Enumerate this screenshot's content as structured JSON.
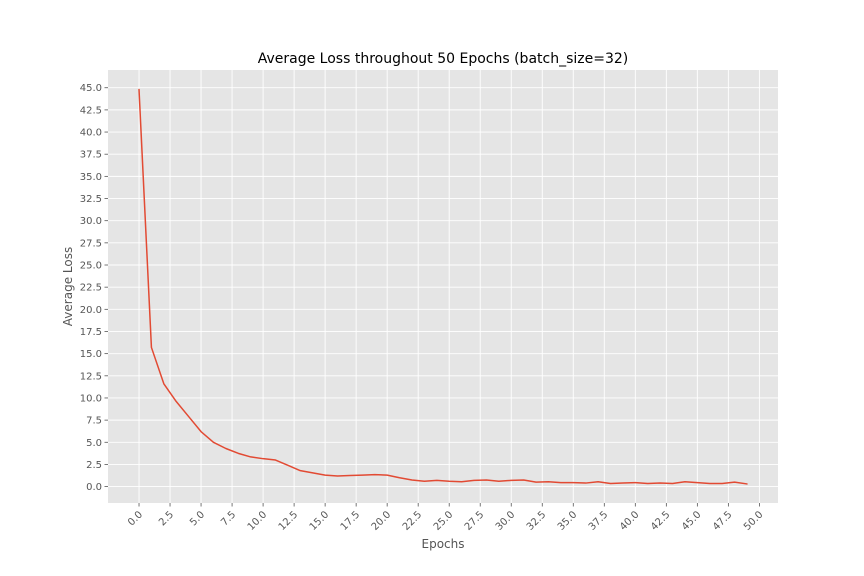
{
  "chart_data": {
    "type": "line",
    "title": "Average Loss throughout 50 Epochs (batch_size=32)",
    "xlabel": "Epochs",
    "ylabel": "Average Loss",
    "xlim": [
      -2.5,
      51.5
    ],
    "ylim": [
      -1.85,
      47.0
    ],
    "grid": true,
    "legend": "none",
    "colors": {
      "plot_bg": "#E5E5E5",
      "grid": "#FFFFFF",
      "line": "#E24A33",
      "tick": "#555555"
    },
    "x_ticks": [
      0,
      2.5,
      5,
      7.5,
      10,
      12.5,
      15,
      17.5,
      20,
      22.5,
      25,
      27.5,
      30,
      32.5,
      35,
      37.5,
      40,
      42.5,
      45,
      47.5,
      50
    ],
    "x_tick_labels": [
      "0.0",
      "2.5",
      "5.0",
      "7.5",
      "10.0",
      "12.5",
      "15.0",
      "17.5",
      "20.0",
      "22.5",
      "25.0",
      "27.5",
      "30.0",
      "32.5",
      "35.0",
      "37.5",
      "40.0",
      "42.5",
      "45.0",
      "47.5",
      "50.0"
    ],
    "y_ticks": [
      0,
      2.5,
      5,
      7.5,
      10,
      12.5,
      15,
      17.5,
      20,
      22.5,
      25,
      27.5,
      30,
      32.5,
      35,
      37.5,
      40,
      42.5,
      45
    ],
    "y_tick_labels": [
      "0.0",
      "2.5",
      "5.0",
      "7.5",
      "10.0",
      "12.5",
      "15.0",
      "17.5",
      "20.0",
      "22.5",
      "25.0",
      "27.5",
      "30.0",
      "32.5",
      "35.0",
      "37.5",
      "40.0",
      "42.5",
      "45.0"
    ],
    "series": [
      {
        "name": "Average Loss",
        "x": [
          0,
          1,
          2,
          3,
          4,
          5,
          6,
          7,
          8,
          9,
          10,
          11,
          12,
          13,
          14,
          15,
          16,
          17,
          18,
          19,
          20,
          21,
          22,
          23,
          24,
          25,
          26,
          27,
          28,
          29,
          30,
          31,
          32,
          33,
          34,
          35,
          36,
          37,
          38,
          39,
          40,
          41,
          42,
          43,
          44,
          45,
          46,
          47,
          48,
          49
        ],
        "values": [
          44.8,
          15.7,
          11.6,
          9.6,
          7.9,
          6.2,
          5.0,
          4.3,
          3.75,
          3.35,
          3.15,
          3.0,
          2.4,
          1.8,
          1.55,
          1.3,
          1.2,
          1.25,
          1.3,
          1.35,
          1.3,
          1.0,
          0.75,
          0.6,
          0.7,
          0.6,
          0.55,
          0.7,
          0.75,
          0.6,
          0.7,
          0.75,
          0.5,
          0.55,
          0.45,
          0.45,
          0.4,
          0.55,
          0.35,
          0.4,
          0.45,
          0.35,
          0.4,
          0.35,
          0.55,
          0.45,
          0.35,
          0.35,
          0.5,
          0.3
        ]
      }
    ]
  }
}
